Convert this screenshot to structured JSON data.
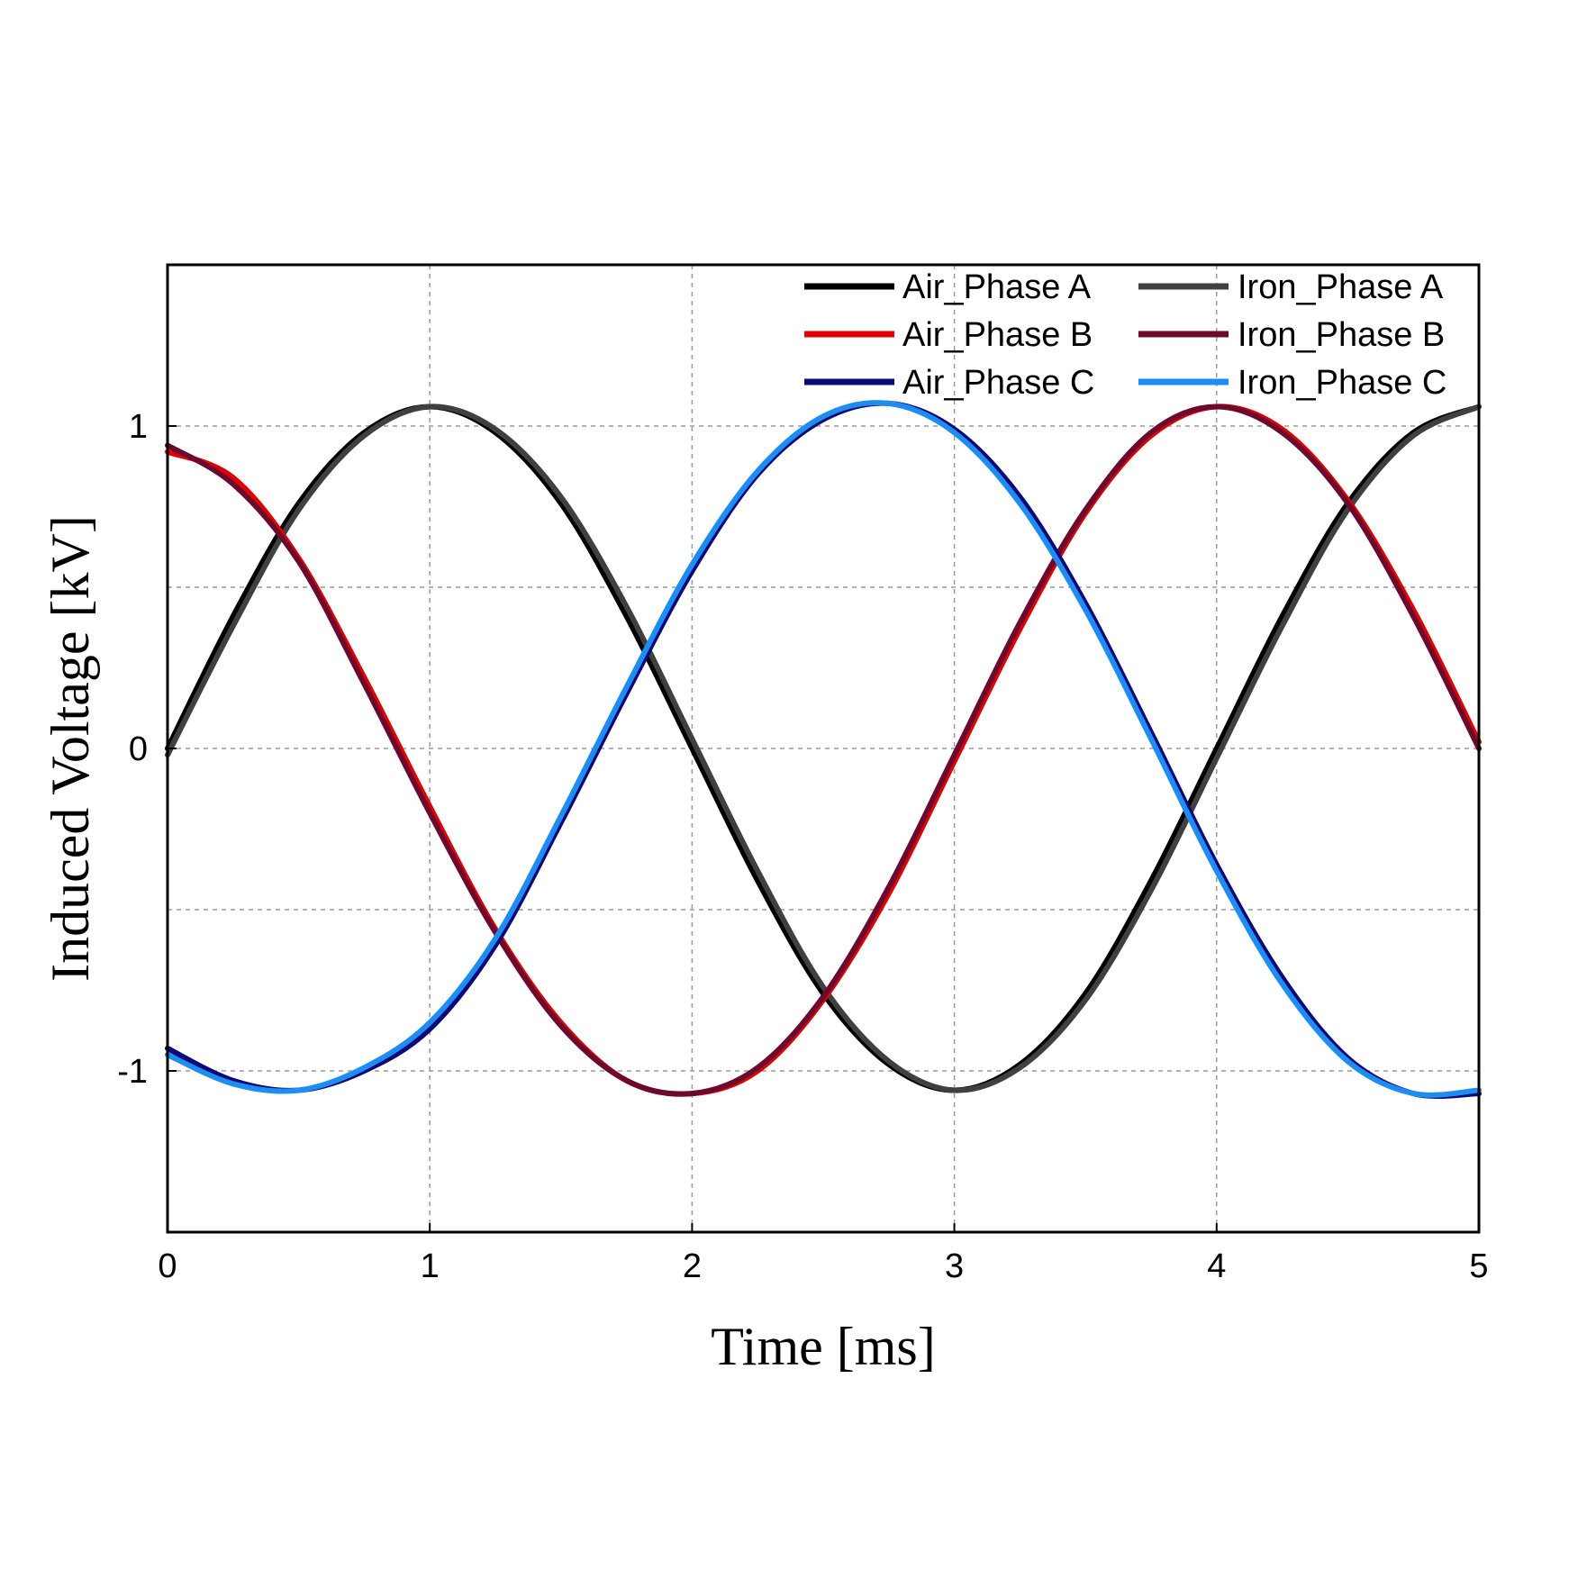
{
  "chart_data": {
    "type": "line",
    "title": "",
    "xlabel": "Time [ms]",
    "ylabel": "Induced Voltage [kV]",
    "xlim": [
      0,
      5
    ],
    "ylim": [
      -1.5,
      1.5
    ],
    "xticks": [
      0,
      1,
      2,
      3,
      4,
      5
    ],
    "xtick_labels": [
      "0",
      "1",
      "2",
      "3",
      "4",
      "5"
    ],
    "yticks": [
      -1,
      0,
      1
    ],
    "ytick_labels": [
      "-1",
      "0",
      "1"
    ],
    "y_minor_gridlines": [
      -0.5,
      0.5
    ],
    "grid": true,
    "legend_position": "top-right",
    "x": [
      0,
      0.25,
      0.5,
      0.75,
      1.0,
      1.25,
      1.5,
      1.75,
      2.0,
      2.25,
      2.5,
      2.75,
      3.0,
      3.25,
      3.5,
      3.75,
      4.0,
      4.25,
      4.5,
      4.75,
      5.0
    ],
    "series": [
      {
        "name": "Air_Phase A",
        "color": "#000000",
        "values": [
          0.0,
          0.41,
          0.76,
          0.98,
          1.06,
          0.98,
          0.76,
          0.41,
          0.0,
          -0.41,
          -0.76,
          -0.98,
          -1.06,
          -0.98,
          -0.76,
          -0.41,
          0.0,
          0.41,
          0.76,
          0.98,
          1.06
        ]
      },
      {
        "name": "Iron_Phase A",
        "color": "#404040",
        "values": [
          -0.02,
          0.38,
          0.74,
          0.97,
          1.06,
          0.99,
          0.78,
          0.44,
          0.03,
          -0.38,
          -0.74,
          -0.97,
          -1.06,
          -0.99,
          -0.78,
          -0.44,
          -0.03,
          0.38,
          0.74,
          0.97,
          1.06
        ]
      },
      {
        "name": "Air_Phase B",
        "color": "#e00000",
        "values": [
          0.92,
          0.84,
          0.59,
          0.22,
          -0.18,
          -0.56,
          -0.85,
          -1.03,
          -1.07,
          -1.0,
          -0.78,
          -0.45,
          -0.04,
          0.37,
          0.73,
          0.97,
          1.06,
          0.99,
          0.77,
          0.43,
          0.02
        ]
      },
      {
        "name": "Iron_Phase B",
        "color": "#6b0a2e",
        "values": [
          0.94,
          0.82,
          0.58,
          0.2,
          -0.2,
          -0.57,
          -0.86,
          -1.03,
          -1.07,
          -0.99,
          -0.77,
          -0.43,
          -0.02,
          0.39,
          0.74,
          0.98,
          1.06,
          0.98,
          0.76,
          0.41,
          0.0
        ]
      },
      {
        "name": "Air_Phase C",
        "color": "#0a0a78",
        "values": [
          -0.93,
          -1.03,
          -1.06,
          -1.0,
          -0.87,
          -0.61,
          -0.23,
          0.17,
          0.55,
          0.85,
          1.02,
          1.07,
          0.99,
          0.78,
          0.45,
          0.05,
          -0.36,
          -0.71,
          -0.96,
          -1.07,
          -1.07
        ]
      },
      {
        "name": "Iron_Phase C",
        "color": "#1e8cf0",
        "values": [
          -0.95,
          -1.04,
          -1.06,
          -0.99,
          -0.85,
          -0.59,
          -0.21,
          0.19,
          0.57,
          0.86,
          1.03,
          1.07,
          0.98,
          0.76,
          0.43,
          0.03,
          -0.38,
          -0.73,
          -0.97,
          -1.07,
          -1.06
        ]
      }
    ]
  }
}
